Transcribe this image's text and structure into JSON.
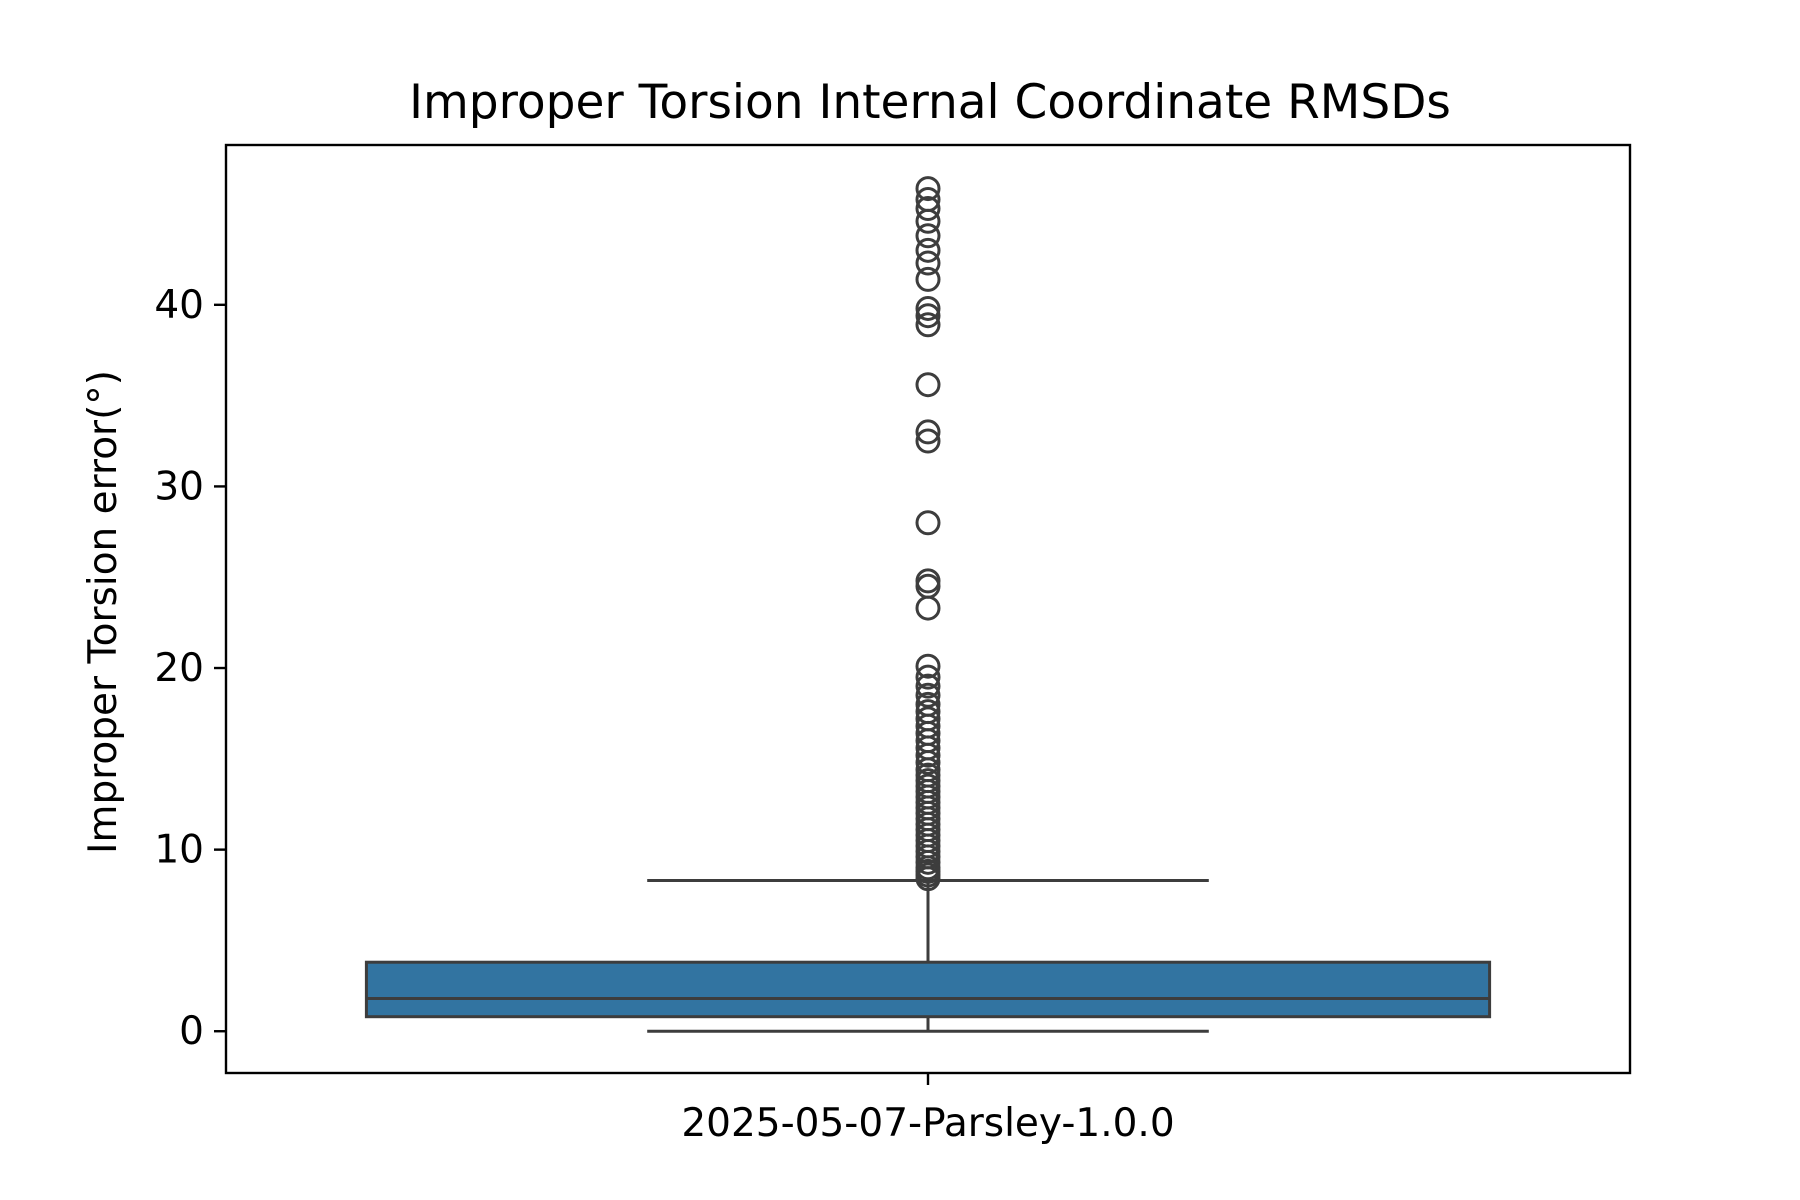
{
  "chart_data": {
    "type": "box",
    "title": "Improper Torsion Internal Coordinate RMSDs",
    "xlabel": "",
    "ylabel": "Improper Torsion error(°)",
    "categories": [
      "2025-05-07-Parsley-1.0.0"
    ],
    "ylim": [
      -2.3,
      48.8
    ],
    "yticks": [
      0,
      10,
      20,
      30,
      40
    ],
    "ytick_labels": [
      "0",
      "10",
      "20",
      "30",
      "40"
    ],
    "grid": false,
    "legend": "none",
    "box_color": "#3274a1",
    "line_color": "#3d3d3d",
    "boxes": [
      {
        "name": "2025-05-07-Parsley-1.0.0",
        "whisker_low": 0.0,
        "q1": 0.8,
        "median": 1.8,
        "q3": 3.8,
        "whisker_high": 8.3,
        "outliers": [
          8.4,
          8.6,
          8.8,
          9.0,
          9.3,
          9.6,
          9.9,
          10.2,
          10.5,
          10.8,
          11.1,
          11.4,
          11.7,
          12.0,
          12.3,
          12.6,
          12.9,
          13.2,
          13.5,
          13.8,
          14.1,
          14.4,
          14.8,
          15.2,
          15.6,
          16.0,
          16.4,
          16.8,
          17.2,
          17.6,
          18.0,
          18.5,
          19.0,
          19.5,
          20.1,
          23.3,
          24.5,
          24.8,
          28.0,
          32.5,
          33.0,
          35.6,
          38.9,
          39.4,
          39.8,
          41.4,
          42.3,
          43.0,
          43.8,
          44.6,
          45.3,
          45.8,
          46.4
        ]
      }
    ]
  }
}
